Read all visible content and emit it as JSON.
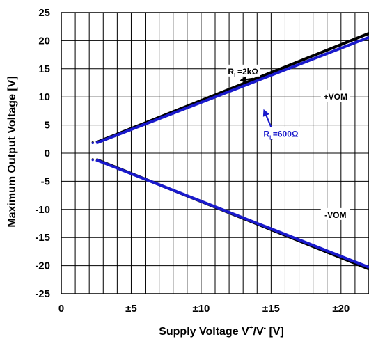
{
  "chart_data": {
    "type": "line",
    "title": "",
    "xlabel": {
      "main": "Supply Voltage V",
      "sup_plus": "+",
      "slash": "/V",
      "sup_minus": "-",
      "unit": " [V]"
    },
    "ylabel": "Maximum Output Voltage [V]",
    "xlim": [
      0,
      22
    ],
    "ylim": [
      -25,
      25
    ],
    "x_ticks": [
      {
        "value": 0,
        "label": "0"
      },
      {
        "value": 5,
        "label": "±5"
      },
      {
        "value": 10,
        "label": "±10"
      },
      {
        "value": 15,
        "label": "±15"
      },
      {
        "value": 20,
        "label": "±20"
      }
    ],
    "y_ticks": [
      {
        "value": 25,
        "label": "25"
      },
      {
        "value": 20,
        "label": "20"
      },
      {
        "value": 15,
        "label": "15"
      },
      {
        "value": 10,
        "label": "10"
      },
      {
        "value": 5,
        "label": "5"
      },
      {
        "value": 0,
        "label": "0"
      },
      {
        "value": -5,
        "label": "-5"
      },
      {
        "value": -10,
        "label": "-10"
      },
      {
        "value": -15,
        "label": "-15"
      },
      {
        "value": -20,
        "label": "-20"
      },
      {
        "value": -25,
        "label": "-25"
      }
    ],
    "grid": true,
    "series": [
      {
        "color": "#000000",
        "points": [
          [
            2.5,
            1.9
          ],
          [
            22,
            21.3
          ]
        ]
      },
      {
        "color": "#1a1acc",
        "points": [
          [
            2.5,
            1.8
          ],
          [
            22,
            20.6
          ]
        ]
      },
      {
        "color": "#000000",
        "points": [
          [
            2.5,
            -1.1
          ],
          [
            22,
            -20.6
          ]
        ]
      },
      {
        "color": "#1a1acc",
        "points": [
          [
            2.5,
            -1.2
          ],
          [
            22,
            -20.3
          ]
        ]
      }
    ],
    "annotations": [
      {
        "id": "rl2k",
        "text": "R",
        "sub": "L",
        "rest": "=2kΩ",
        "color": "#000000",
        "at": [
          13.0,
          14.5
        ],
        "arrow_to": [
          12.85,
          12.95
        ]
      },
      {
        "id": "rl600",
        "text": "R",
        "sub": "L",
        "rest": "=600Ω",
        "color": "#1a1acc",
        "at": [
          15.7,
          3.4
        ],
        "arrow_to": [
          14.5,
          7.6
        ]
      },
      {
        "id": "vom-pos",
        "text": "+VOM",
        "color": "#000000",
        "at": [
          19.6,
          10.0
        ]
      },
      {
        "id": "vom-neg",
        "text": "-VOM",
        "color": "#000000",
        "at": [
          19.6,
          -11.0
        ]
      }
    ],
    "colors": {
      "grid": "#000000",
      "black_series": "#000000",
      "blue_series": "#1a1acc"
    }
  }
}
